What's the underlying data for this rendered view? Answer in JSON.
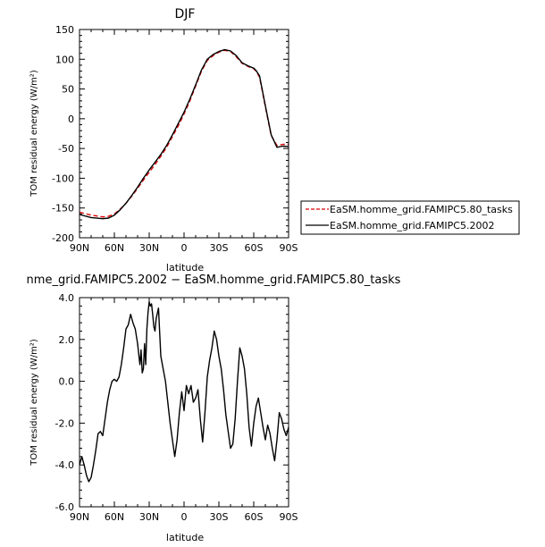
{
  "chart_data": [
    {
      "type": "line",
      "title": "DJF",
      "xlabel": "latitude",
      "ylabel": "TOM residual energy (W/m²)",
      "xlim": [
        90,
        -90
      ],
      "ylim": [
        -200,
        150
      ],
      "xticks": [
        {
          "value": 90,
          "label": "90N"
        },
        {
          "value": 60,
          "label": "60N"
        },
        {
          "value": 30,
          "label": "30N"
        },
        {
          "value": 0,
          "label": "0"
        },
        {
          "value": -30,
          "label": "30S"
        },
        {
          "value": -60,
          "label": "60S"
        },
        {
          "value": -90,
          "label": "90S"
        }
      ],
      "yticks": [
        150,
        100,
        50,
        0,
        -50,
        -100,
        -150,
        -200
      ],
      "legend_position": "right",
      "series": [
        {
          "name": "EaSM.homme_grid.FAMIPC5.80_tasks",
          "color": "#dd0000",
          "dash": "dashed",
          "x": [
            90,
            80,
            70,
            65,
            60,
            55,
            50,
            45,
            40,
            35,
            30,
            25,
            20,
            15,
            10,
            5,
            0,
            -5,
            -10,
            -15,
            -20,
            -25,
            -30,
            -35,
            -40,
            -45,
            -50,
            -55,
            -60,
            -62,
            -65,
            -70,
            -75,
            -80,
            -85,
            -90
          ],
          "y": [
            -157,
            -162,
            -165,
            -164,
            -160,
            -152,
            -142,
            -130,
            -117,
            -103,
            -90,
            -77,
            -63,
            -48,
            -30,
            -12,
            8,
            30,
            55,
            80,
            98,
            106,
            112,
            115,
            113,
            104,
            93,
            88,
            84,
            80,
            70,
            20,
            -28,
            -45,
            -43,
            -43
          ]
        },
        {
          "name": "EaSM.homme_grid.FAMIPC5.2002",
          "color": "#000000",
          "dash": "solid",
          "x": [
            90,
            80,
            70,
            65,
            60,
            55,
            50,
            45,
            40,
            35,
            30,
            25,
            20,
            15,
            10,
            5,
            0,
            -5,
            -10,
            -15,
            -20,
            -25,
            -30,
            -35,
            -40,
            -45,
            -50,
            -55,
            -60,
            -62,
            -65,
            -70,
            -75,
            -80,
            -85,
            -90
          ],
          "y": [
            -161,
            -166,
            -168,
            -167,
            -162,
            -153,
            -142,
            -129,
            -115,
            -100,
            -86,
            -73,
            -60,
            -45,
            -27,
            -8,
            11,
            33,
            57,
            82,
            100,
            108,
            113,
            116,
            114,
            106,
            94,
            89,
            85,
            81,
            72,
            22,
            -27,
            -48,
            -46,
            -47
          ]
        }
      ]
    },
    {
      "type": "line",
      "title": "nme_grid.FAMIPC5.2002 − EaSM.homme_grid.FAMIPC5.80_tasks",
      "xlabel": "latitude",
      "ylabel": "TOM residual energy (W/m²)",
      "xlim": [
        90,
        -90
      ],
      "ylim": [
        -6,
        4
      ],
      "xticks": [
        {
          "value": 90,
          "label": "90N"
        },
        {
          "value": 60,
          "label": "60N"
        },
        {
          "value": 30,
          "label": "30N"
        },
        {
          "value": 0,
          "label": "0"
        },
        {
          "value": -30,
          "label": "30S"
        },
        {
          "value": -60,
          "label": "60S"
        },
        {
          "value": -90,
          "label": "90S"
        }
      ],
      "yticks": [
        "4.0",
        "2.0",
        "0.0",
        "-2.0",
        "-4.0",
        "-6.0"
      ],
      "series": [
        {
          "color": "#000000",
          "dash": "solid",
          "x": [
            90,
            88,
            86,
            84,
            82,
            80,
            78,
            76,
            74,
            72,
            70,
            68,
            66,
            64,
            62,
            60,
            58,
            56,
            54,
            52,
            50,
            48,
            46,
            44,
            42,
            40,
            38,
            37,
            36,
            35,
            34,
            33,
            32,
            31,
            30,
            29,
            28,
            27,
            26,
            25,
            24,
            22,
            20,
            18,
            16,
            14,
            12,
            10,
            8,
            6,
            4,
            2,
            0,
            -2,
            -4,
            -6,
            -8,
            -10,
            -12,
            -14,
            -16,
            -18,
            -20,
            -22,
            -24,
            -26,
            -28,
            -30,
            -32,
            -34,
            -36,
            -38,
            -40,
            -42,
            -44,
            -46,
            -48,
            -50,
            -52,
            -54,
            -56,
            -58,
            -60,
            -62,
            -64,
            -66,
            -68,
            -70,
            -72,
            -74,
            -76,
            -78,
            -80,
            -82,
            -84,
            -86,
            -88,
            -90
          ],
          "y": [
            -4.0,
            -3.6,
            -4.0,
            -4.5,
            -4.8,
            -4.6,
            -4.0,
            -3.3,
            -2.5,
            -2.4,
            -2.6,
            -1.8,
            -1.0,
            -0.4,
            0.0,
            0.1,
            0.0,
            0.2,
            0.8,
            1.6,
            2.5,
            2.7,
            3.2,
            2.8,
            2.5,
            1.8,
            0.8,
            1.5,
            0.4,
            0.6,
            1.8,
            0.8,
            2.5,
            3.3,
            3.8,
            3.6,
            3.7,
            3.2,
            2.6,
            2.4,
            3.0,
            3.5,
            1.2,
            0.6,
            0.0,
            -1.0,
            -2.0,
            -2.8,
            -3.6,
            -2.8,
            -1.5,
            -0.5,
            -1.4,
            -0.2,
            -0.6,
            -0.2,
            -1.0,
            -0.8,
            -0.4,
            -1.8,
            -2.9,
            -1.5,
            0.2,
            1.0,
            1.6,
            2.4,
            2.0,
            1.2,
            0.6,
            -0.4,
            -1.6,
            -2.4,
            -3.2,
            -3.0,
            -1.8,
            0.0,
            1.6,
            1.2,
            0.6,
            -0.6,
            -2.2,
            -3.1,
            -2.0,
            -1.2,
            -0.8,
            -1.5,
            -2.2,
            -2.8,
            -2.1,
            -2.5,
            -3.2,
            -3.8,
            -2.8,
            -1.5,
            -1.8,
            -2.3,
            -2.6,
            -2.2
          ]
        }
      ]
    }
  ]
}
